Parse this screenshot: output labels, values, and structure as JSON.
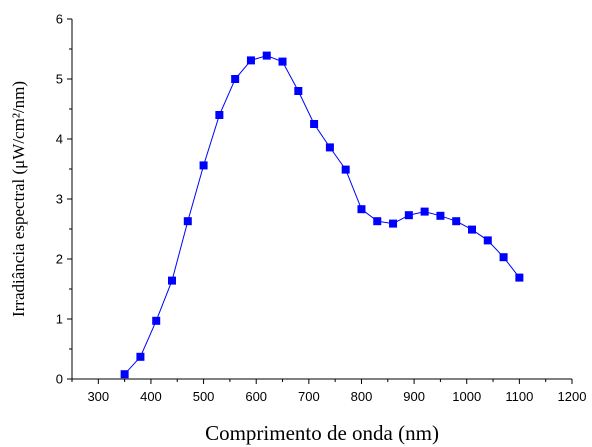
{
  "chart_data": {
    "type": "line",
    "xlabel": "Comprimento de onda (nm)",
    "ylabel": "Irradiância espectral (μW/cm²/nm)",
    "xlim": [
      250,
      1200
    ],
    "ylim": [
      0,
      6
    ],
    "xticks": [
      300,
      400,
      500,
      600,
      700,
      800,
      900,
      1000,
      1100,
      1200
    ],
    "yticks": [
      0,
      1,
      2,
      3,
      4,
      5,
      6
    ],
    "grid": false,
    "series": [
      {
        "color": "#0000ff",
        "marker": "square",
        "x": [
          350,
          380,
          410,
          440,
          470,
          500,
          530,
          560,
          590,
          620,
          650,
          680,
          710,
          740,
          770,
          800,
          830,
          860,
          890,
          920,
          950,
          980,
          1010,
          1040,
          1070,
          1100
        ],
        "y": [
          0.08,
          0.37,
          0.97,
          1.64,
          2.63,
          3.56,
          4.4,
          5.0,
          5.31,
          5.39,
          5.29,
          4.8,
          4.25,
          3.86,
          3.49,
          2.83,
          2.63,
          2.59,
          2.73,
          2.79,
          2.72,
          2.63,
          2.49,
          2.31,
          2.03,
          1.69
        ]
      }
    ]
  }
}
